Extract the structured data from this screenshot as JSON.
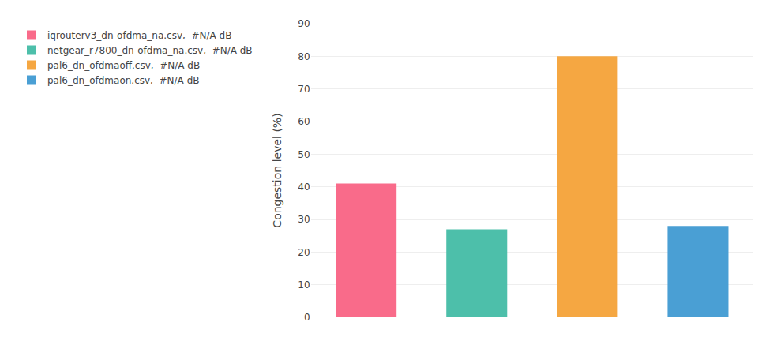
{
  "chart_data": {
    "type": "bar",
    "categories": [
      "iqrouterv3_dn-ofdma_na.csv,  #N/A dB",
      "netgear_r7800_dn-ofdma_na.csv,  #N/A dB",
      "pal6_dn_ofdmaoff.csv,  #N/A dB",
      "pal6_dn_ofdmaon.csv,  #N/A dB"
    ],
    "values": [
      41.0,
      27.0,
      80.0,
      28.0
    ],
    "colors": [
      "#F96B8A",
      "#4DBFAA",
      "#F5A742",
      "#4A9FD4"
    ],
    "ylabel": "Congestion level (%)",
    "ylim": [
      0,
      90
    ],
    "yticks": [
      0,
      10,
      20,
      30,
      40,
      50,
      60,
      70,
      80,
      90
    ],
    "grid": true,
    "legend": "upper left",
    "tick_labels": "y"
  }
}
